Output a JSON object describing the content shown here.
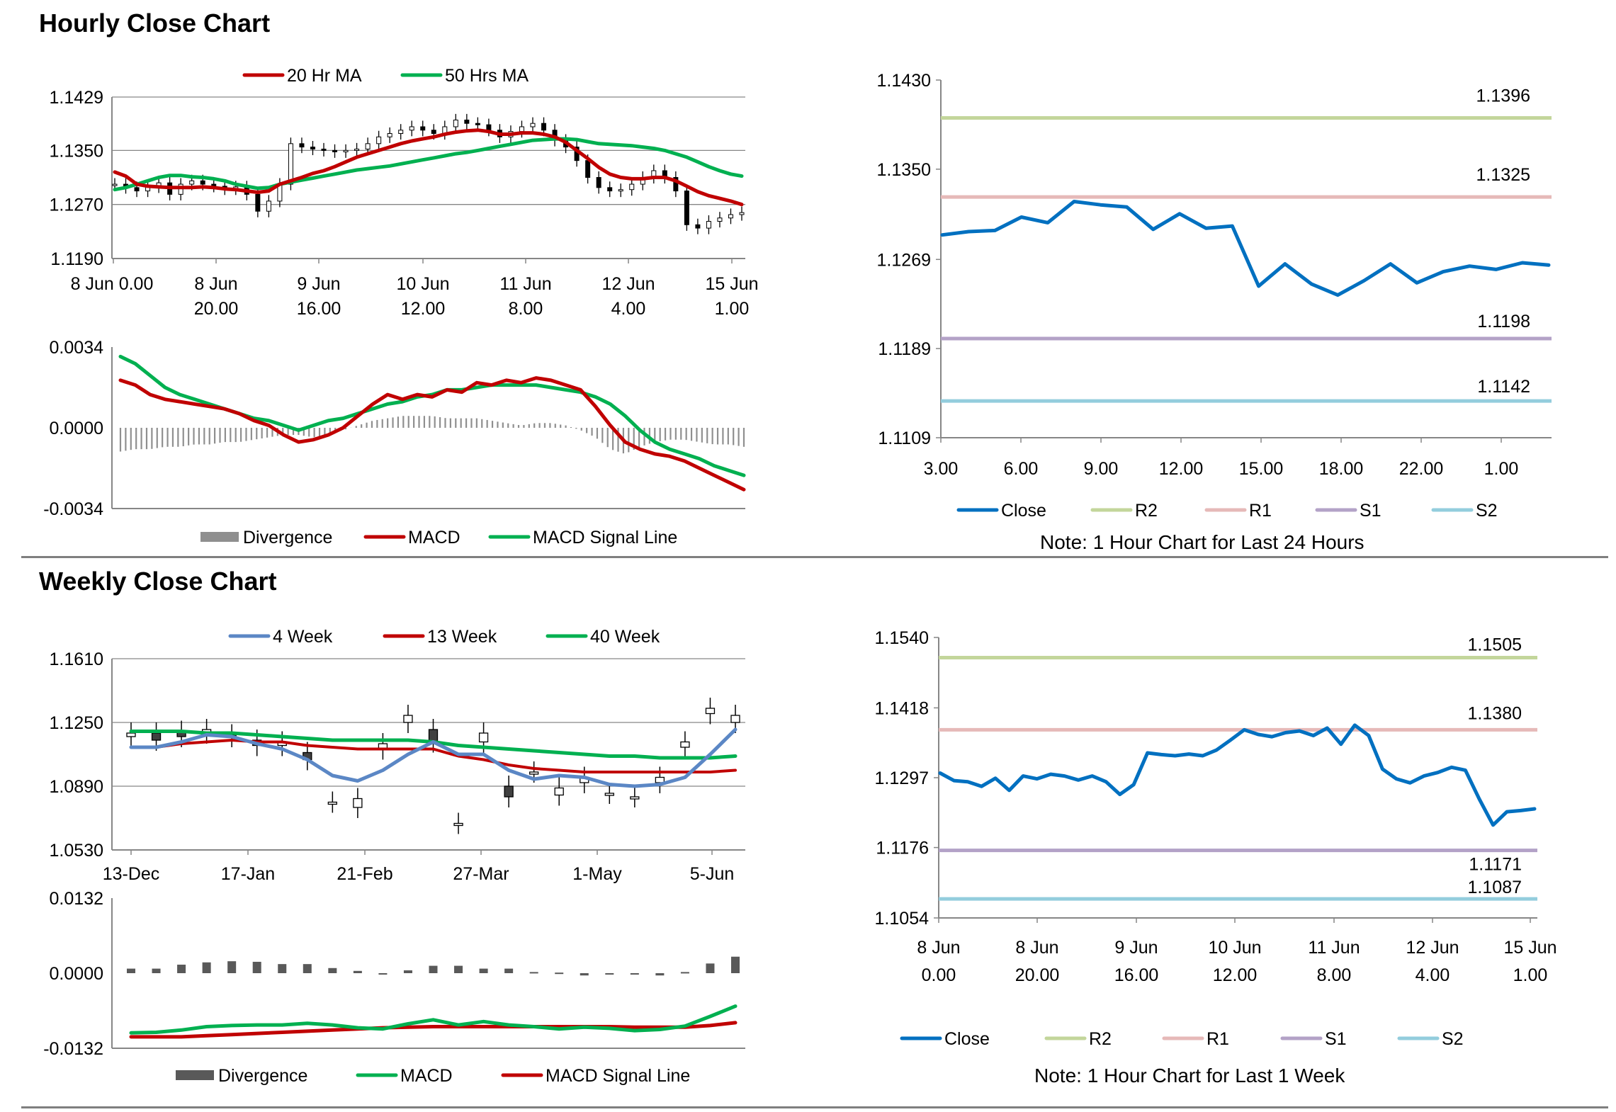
{
  "titles": {
    "hourly": "Hourly Close Chart",
    "weekly": "Weekly Close Chart"
  },
  "colors": {
    "red": "#c00000",
    "green": "#00b050",
    "blue": "#0070c0",
    "steel": "#5b87c5",
    "gray": "#8f8f8f",
    "darkgray": "#595959",
    "r2": "#c3d69b",
    "r1": "#e6b9b8",
    "s1": "#b3a2c7",
    "s2": "#93cddd",
    "grid": "#868686"
  },
  "chart_data": [
    {
      "id": "hourly_price",
      "type": "candlestick",
      "legend": [
        "20 Hr MA",
        "50 Hrs MA"
      ],
      "yticks": [
        "1.1429",
        "1.1350",
        "1.1270",
        "1.1190"
      ],
      "ylim": [
        1.119,
        1.1429
      ],
      "xticks": [
        [
          "8 Jun 0.00",
          ""
        ],
        [
          "8 Jun",
          "20.00"
        ],
        [
          "9 Jun",
          "16.00"
        ],
        [
          "10 Jun",
          "12.00"
        ],
        [
          "11 Jun",
          "8.00"
        ],
        [
          "12 Jun",
          "4.00"
        ],
        [
          "15 Jun",
          "1.00"
        ]
      ],
      "close": [
        1.13,
        1.1295,
        1.129,
        1.1296,
        1.1302,
        1.1285,
        1.13,
        1.1305,
        1.13,
        1.1297,
        1.1293,
        1.1296,
        1.1285,
        1.126,
        1.1275,
        1.13,
        1.136,
        1.1355,
        1.1352,
        1.135,
        1.1348,
        1.135,
        1.1352,
        1.136,
        1.137,
        1.1375,
        1.138,
        1.1385,
        1.138,
        1.1375,
        1.1385,
        1.1395,
        1.139,
        1.1388,
        1.138,
        1.137,
        1.1378,
        1.1385,
        1.139,
        1.138,
        1.1365,
        1.1355,
        1.1335,
        1.131,
        1.1295,
        1.129,
        1.1292,
        1.13,
        1.131,
        1.132,
        1.131,
        1.129,
        1.124,
        1.1235,
        1.1245,
        1.125,
        1.1255,
        1.1258
      ],
      "ma20": [
        1.1318,
        1.1312,
        1.13,
        1.1297,
        1.1296,
        1.1295,
        1.1295,
        1.1295,
        1.1296,
        1.1295,
        1.1293,
        1.1292,
        1.129,
        1.1288,
        1.129,
        1.13,
        1.1305,
        1.131,
        1.1316,
        1.132,
        1.1326,
        1.1333,
        1.134,
        1.1345,
        1.135,
        1.1355,
        1.136,
        1.1364,
        1.1367,
        1.137,
        1.1374,
        1.1377,
        1.1379,
        1.138,
        1.1378,
        1.1374,
        1.1374,
        1.1376,
        1.1376,
        1.1374,
        1.137,
        1.1362,
        1.135,
        1.1338,
        1.1325,
        1.1315,
        1.131,
        1.1308,
        1.1308,
        1.131,
        1.131,
        1.1305,
        1.1297,
        1.1289,
        1.1283,
        1.1279,
        1.1275,
        1.127
      ],
      "ma50": [
        1.1292,
        1.1295,
        1.13,
        1.1305,
        1.131,
        1.1313,
        1.1313,
        1.1311,
        1.131,
        1.1308,
        1.1305,
        1.13,
        1.1297,
        1.1294,
        1.1295,
        1.13,
        1.1303,
        1.1306,
        1.1309,
        1.1312,
        1.1315,
        1.1318,
        1.1321,
        1.1323,
        1.1325,
        1.1327,
        1.133,
        1.1333,
        1.1336,
        1.1339,
        1.1342,
        1.1345,
        1.1347,
        1.135,
        1.1353,
        1.1356,
        1.1359,
        1.1362,
        1.1365,
        1.1366,
        1.1367,
        1.1367,
        1.1366,
        1.1363,
        1.136,
        1.1359,
        1.1358,
        1.1357,
        1.1355,
        1.1353,
        1.135,
        1.1345,
        1.134,
        1.1333,
        1.1326,
        1.132,
        1.1315,
        1.1312
      ]
    },
    {
      "id": "hourly_macd",
      "type": "line+bar",
      "legend": [
        "Divergence",
        "MACD",
        "MACD Signal Line"
      ],
      "yticks": [
        "0.0034",
        "0.0000",
        "-0.0034"
      ],
      "ylim": [
        -0.0034,
        0.0034
      ],
      "macd": [
        0.002,
        0.0018,
        0.0014,
        0.0012,
        0.0011,
        0.001,
        0.0009,
        0.0008,
        0.0006,
        0.0003,
        0.0001,
        -0.0003,
        -0.0006,
        -0.0005,
        -0.0003,
        0.0,
        0.0005,
        0.001,
        0.0014,
        0.0012,
        0.0014,
        0.0013,
        0.0016,
        0.0015,
        0.0019,
        0.0018,
        0.002,
        0.0019,
        0.0021,
        0.002,
        0.0018,
        0.0016,
        0.0009,
        0.0001,
        -0.0006,
        -0.0009,
        -0.0011,
        -0.0012,
        -0.0014,
        -0.0017,
        -0.002,
        -0.0023,
        -0.0026
      ],
      "signal": [
        0.003,
        0.0027,
        0.0022,
        0.0017,
        0.0014,
        0.0012,
        0.001,
        0.0008,
        0.0006,
        0.0004,
        0.0003,
        0.0001,
        -0.0001,
        0.0001,
        0.0003,
        0.0004,
        0.0006,
        0.0008,
        0.001,
        0.0011,
        0.0013,
        0.0014,
        0.0016,
        0.0016,
        0.0017,
        0.0018,
        0.0018,
        0.0018,
        0.0018,
        0.0017,
        0.0016,
        0.0015,
        0.0013,
        0.001,
        0.0005,
        -0.0001,
        -0.0006,
        -0.0009,
        -0.0011,
        -0.0013,
        -0.0016,
        -0.0018,
        -0.002
      ],
      "divergence": [
        -0.001,
        -0.0009,
        -0.0009,
        -0.0008,
        -0.0008,
        -0.0007,
        -0.0007,
        -0.0006,
        -0.0006,
        -0.0005,
        -0.0004,
        -0.0003,
        -0.0003,
        -0.0004,
        -0.0003,
        -0.0001,
        0.0001,
        0.0003,
        0.0004,
        0.0005,
        0.0005,
        0.0005,
        0.0004,
        0.0004,
        0.0004,
        0.0003,
        0.0002,
        0.0001,
        0.0002,
        0.0002,
        0.0001,
        -0.0001,
        -0.0004,
        -0.0009,
        -0.0011,
        -0.0008,
        -0.0006,
        -0.0005,
        -0.0005,
        -0.0006,
        -0.0007,
        -0.0007,
        -0.0008
      ]
    },
    {
      "id": "hourly_close",
      "type": "line",
      "legend": [
        "Close",
        "R2",
        "R1",
        "S1",
        "S2"
      ],
      "note": "Note: 1 Hour Chart for Last 24 Hours",
      "yticks": [
        "1.1430",
        "1.1350",
        "1.1269",
        "1.1189",
        "1.1109"
      ],
      "ylim": [
        1.1109,
        1.143
      ],
      "xticks": [
        "3.00",
        "6.00",
        "9.00",
        "12.00",
        "15.00",
        "18.00",
        "22.00",
        "1.00"
      ],
      "close": [
        1.1291,
        1.1294,
        1.1295,
        1.1307,
        1.1302,
        1.1321,
        1.1318,
        1.1316,
        1.1296,
        1.131,
        1.1297,
        1.1299,
        1.1245,
        1.1265,
        1.1247,
        1.1237,
        1.125,
        1.1265,
        1.1248,
        1.1258,
        1.1263,
        1.126,
        1.1266,
        1.1264
      ],
      "levels": {
        "R2": "1.1396",
        "R1": "1.1325",
        "S1": "1.1198",
        "S2": "1.1142"
      }
    },
    {
      "id": "weekly_price",
      "type": "candlestick",
      "legend": [
        "4 Week",
        "13 Week",
        "40 Week"
      ],
      "yticks": [
        "1.1610",
        "1.1250",
        "1.0890",
        "1.0530"
      ],
      "ylim": [
        1.053,
        1.161
      ],
      "xticks": [
        "13-Dec",
        "17-Jan",
        "21-Feb",
        "27-Mar",
        "1-May",
        "5-Jun"
      ],
      "open": [
        1.117,
        1.119,
        1.12,
        1.119,
        1.118,
        1.115,
        1.112,
        1.108,
        1.08,
        1.077,
        1.11,
        1.125,
        1.121,
        1.068,
        1.114,
        1.089,
        1.097,
        1.084,
        1.091,
        1.085,
        1.083,
        1.091,
        1.111,
        1.13,
        1.125
      ],
      "close": [
        1.119,
        1.115,
        1.117,
        1.121,
        1.117,
        1.112,
        1.114,
        1.104,
        1.08,
        1.082,
        1.113,
        1.129,
        1.114,
        1.068,
        1.119,
        1.083,
        1.097,
        1.088,
        1.094,
        1.085,
        1.083,
        1.094,
        1.114,
        1.133,
        1.129
      ],
      "w4": [
        1.111,
        1.111,
        1.114,
        1.118,
        1.117,
        1.113,
        1.11,
        1.104,
        1.095,
        1.092,
        1.098,
        1.107,
        1.114,
        1.107,
        1.107,
        1.098,
        1.093,
        1.095,
        1.094,
        1.09,
        1.089,
        1.09,
        1.094,
        1.107,
        1.121
      ],
      "w13": [
        1.111,
        1.111,
        1.113,
        1.114,
        1.115,
        1.114,
        1.114,
        1.112,
        1.111,
        1.11,
        1.11,
        1.11,
        1.11,
        1.106,
        1.104,
        1.101,
        1.099,
        1.098,
        1.097,
        1.097,
        1.097,
        1.097,
        1.097,
        1.097,
        1.098
      ],
      "w40": [
        1.12,
        1.12,
        1.12,
        1.119,
        1.119,
        1.118,
        1.117,
        1.116,
        1.115,
        1.115,
        1.115,
        1.115,
        1.114,
        1.112,
        1.111,
        1.11,
        1.109,
        1.108,
        1.107,
        1.106,
        1.106,
        1.105,
        1.105,
        1.105,
        1.106
      ]
    },
    {
      "id": "weekly_macd",
      "type": "line+bar",
      "legend": [
        "Divergence",
        "MACD",
        "MACD Signal Line"
      ],
      "yticks": [
        "0.0132",
        "0.0000",
        "-0.0132"
      ],
      "ylim": [
        -0.0132,
        0.0132
      ],
      "divergence": [
        0.0008,
        0.0008,
        0.0015,
        0.0019,
        0.0021,
        0.002,
        0.0016,
        0.0016,
        0.0009,
        0.0004,
        -0.0002,
        0.0005,
        0.0013,
        0.0013,
        0.0008,
        0.0008,
        0.0002,
        0.0001,
        -0.0004,
        -0.0002,
        -0.0002,
        -0.0004,
        0.0002,
        0.0017,
        0.0029
      ],
      "macd": [
        -0.0105,
        -0.0104,
        -0.01,
        -0.0094,
        -0.0092,
        -0.0091,
        -0.0091,
        -0.0088,
        -0.0091,
        -0.0096,
        -0.0098,
        -0.0089,
        -0.0082,
        -0.0091,
        -0.0085,
        -0.0091,
        -0.0094,
        -0.0098,
        -0.0095,
        -0.0097,
        -0.0101,
        -0.0099,
        -0.0093,
        -0.0076,
        -0.0058
      ],
      "signal": [
        -0.0112,
        -0.0112,
        -0.0112,
        -0.011,
        -0.0108,
        -0.0106,
        -0.0104,
        -0.0102,
        -0.01,
        -0.0098,
        -0.0096,
        -0.0095,
        -0.0094,
        -0.0094,
        -0.0094,
        -0.0094,
        -0.0094,
        -0.0094,
        -0.0094,
        -0.0094,
        -0.0095,
        -0.0095,
        -0.0095,
        -0.0092,
        -0.0087
      ]
    },
    {
      "id": "weekly_close",
      "type": "line",
      "legend": [
        "Close",
        "R2",
        "R1",
        "S1",
        "S2"
      ],
      "note": "Note: 1 Hour Chart for Last 1 Week",
      "yticks": [
        "1.1540",
        "1.1418",
        "1.1297",
        "1.1176",
        "1.1054"
      ],
      "ylim": [
        1.1054,
        1.154
      ],
      "xticks": [
        [
          "8 Jun",
          "0.00"
        ],
        [
          "8 Jun",
          "20.00"
        ],
        [
          "9 Jun",
          "16.00"
        ],
        [
          "10 Jun",
          "12.00"
        ],
        [
          "11 Jun",
          "8.00"
        ],
        [
          "12 Jun",
          "4.00"
        ],
        [
          "15 Jun",
          "1.00"
        ]
      ],
      "close": [
        1.1305,
        1.1292,
        1.129,
        1.1282,
        1.1296,
        1.1275,
        1.13,
        1.1295,
        1.1303,
        1.13,
        1.1293,
        1.13,
        1.129,
        1.1268,
        1.1285,
        1.134,
        1.1337,
        1.1335,
        1.1338,
        1.1335,
        1.1345,
        1.1362,
        1.138,
        1.1372,
        1.1368,
        1.1375,
        1.1378,
        1.137,
        1.1383,
        1.1355,
        1.1388,
        1.137,
        1.1312,
        1.1295,
        1.1288,
        1.13,
        1.1306,
        1.1315,
        1.131,
        1.126,
        1.1215,
        1.1238,
        1.124,
        1.1243
      ],
      "levels": {
        "R2": "1.1505",
        "R1": "1.1380",
        "S1": "1.1171",
        "S2": "1.1087"
      }
    }
  ]
}
